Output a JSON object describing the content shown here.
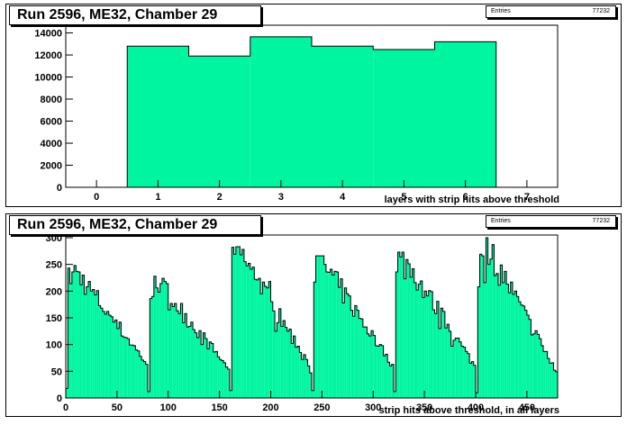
{
  "chart_data": [
    {
      "type": "bar",
      "title": "Run 2596, ME32, Chamber 29",
      "xlabel": "layers with strip hits above threshold",
      "ylabel": "",
      "xlim": [
        -0.5,
        7.5
      ],
      "ylim": [
        0,
        14700
      ],
      "x_ticks": [
        0,
        1,
        2,
        3,
        4,
        5,
        6,
        7
      ],
      "y_ticks": [
        0,
        2000,
        4000,
        6000,
        8000,
        10000,
        12000,
        14000
      ],
      "bin_width": 1,
      "categories": [
        0,
        1,
        2,
        3,
        4,
        5,
        6,
        7
      ],
      "values": [
        0,
        12800,
        11900,
        13650,
        12800,
        12500,
        13200,
        0
      ],
      "fill_color": "#00f5a0",
      "grid": false,
      "legend": "top-right",
      "stats": {
        "label": "Entries",
        "value": "77232"
      }
    },
    {
      "type": "bar",
      "title": "Run 2596, ME32, Chamber 29",
      "xlabel": "strip hits above threshold, in all layers",
      "ylabel": "",
      "xlim": [
        0,
        480
      ],
      "ylim": [
        0,
        305
      ],
      "x_ticks": [
        0,
        50,
        100,
        150,
        200,
        250,
        300,
        350,
        400,
        450
      ],
      "y_ticks": [
        0,
        50,
        100,
        150,
        200,
        250,
        300
      ],
      "bin_width": 2,
      "segment_width": 80,
      "segments": [
        {
          "start": 0,
          "peak": 240,
          "end": 65,
          "low": 18
        },
        {
          "start": 80,
          "peak": 220,
          "end": 55,
          "low": 12
        },
        {
          "start": 160,
          "peak": 275,
          "end": 60,
          "low": 14
        },
        {
          "start": 240,
          "peak": 258,
          "end": 62,
          "low": 14
        },
        {
          "start": 320,
          "peak": 265,
          "end": 60,
          "low": 12
        },
        {
          "start": 400,
          "peak": 292,
          "end": 48,
          "low": 10
        }
      ],
      "fill_color": "#00f5a0",
      "grid": false,
      "legend": "top-right",
      "stats": {
        "label": "Entries",
        "value": "77232"
      }
    }
  ]
}
